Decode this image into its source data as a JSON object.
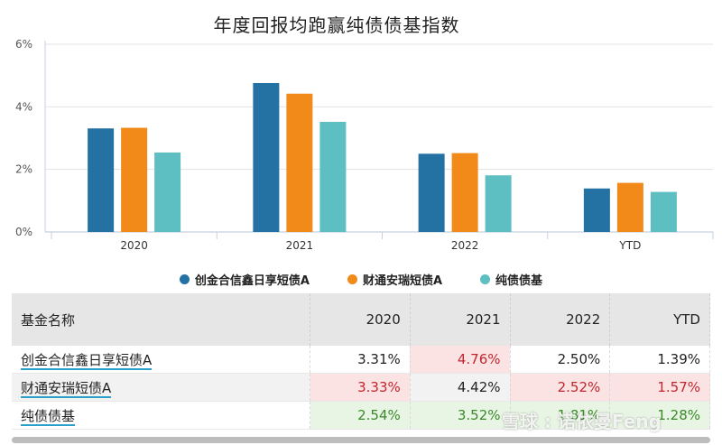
{
  "title": "年度回报均跑赢纯债债基指数",
  "chart_data": {
    "type": "bar",
    "categories": [
      "2020",
      "2021",
      "2022",
      "YTD"
    ],
    "series": [
      {
        "name": "创金合信鑫日享短债A",
        "color": "#2471a3",
        "values": [
          3.31,
          4.76,
          2.5,
          1.39
        ]
      },
      {
        "name": "财通安瑞短债A",
        "color": "#f28a1a",
        "values": [
          3.33,
          4.42,
          2.52,
          1.57
        ]
      },
      {
        "name": "纯债债基",
        "color": "#5dbfc1",
        "values": [
          2.54,
          3.52,
          1.81,
          1.28
        ]
      }
    ],
    "yticks": [
      "0%",
      "2%",
      "4%",
      "6%"
    ],
    "ylim": [
      0,
      6
    ],
    "grid": true,
    "legend_position": "bottom"
  },
  "table": {
    "header": [
      "基金名称",
      "2020",
      "2021",
      "2022",
      "YTD"
    ],
    "rows": [
      {
        "name": "创金合信鑫日享短债A",
        "values": [
          "3.31%",
          "4.76%",
          "2.50%",
          "1.39%"
        ]
      },
      {
        "name": "财通安瑞短债A",
        "values": [
          "3.33%",
          "4.42%",
          "2.52%",
          "1.57%"
        ]
      },
      {
        "name": "纯债债基",
        "values": [
          "2.54%",
          "3.52%",
          "1.81%",
          "1.28%"
        ]
      }
    ]
  },
  "watermark": "雪球 : 诺依曼Feng"
}
